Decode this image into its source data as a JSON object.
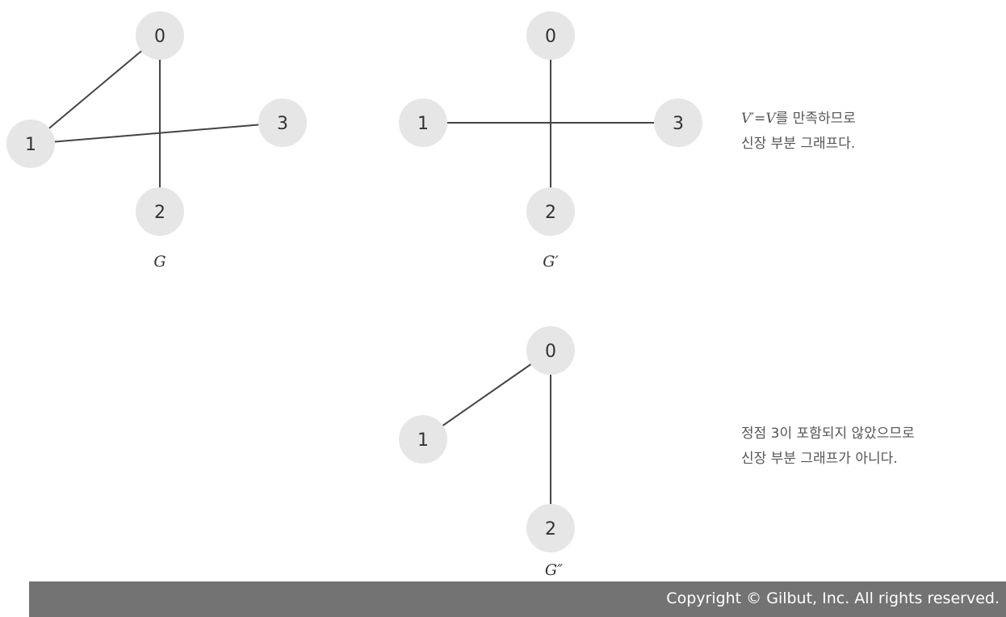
{
  "graphs": [
    {
      "id": "G",
      "name": "G",
      "nodes": [
        "0",
        "1",
        "2",
        "3"
      ],
      "edges": [
        [
          "0",
          "1"
        ],
        [
          "0",
          "2"
        ],
        [
          "1",
          "3"
        ]
      ]
    },
    {
      "id": "G-prime",
      "name": "G′",
      "nodes": [
        "0",
        "1",
        "2",
        "3"
      ],
      "edges": [
        [
          "0",
          "2"
        ],
        [
          "1",
          "3"
        ]
      ]
    },
    {
      "id": "G-double-prime",
      "name": "G″",
      "nodes": [
        "0",
        "1",
        "2"
      ],
      "edges": [
        [
          "0",
          "1"
        ],
        [
          "0",
          "2"
        ]
      ]
    }
  ],
  "notes": {
    "g_prime": {
      "formula_lhs": "V′",
      "formula_eq": "=",
      "formula_rhs": "V",
      "line1_suffix": "를 만족하므로",
      "line2": "신장 부분 그래프다."
    },
    "g_double_prime": {
      "line1": "정점 3이 포함되지 않았으므로",
      "line2": "신장 부분 그래프가 아니다."
    }
  },
  "footer": {
    "copyright": "Copyright © Gilbut, Inc. All rights reserved."
  },
  "colors": {
    "node_fill": "#e6e6e6",
    "edge": "#444444",
    "footer_bg": "#737373",
    "footer_text": "#ffffff"
  }
}
